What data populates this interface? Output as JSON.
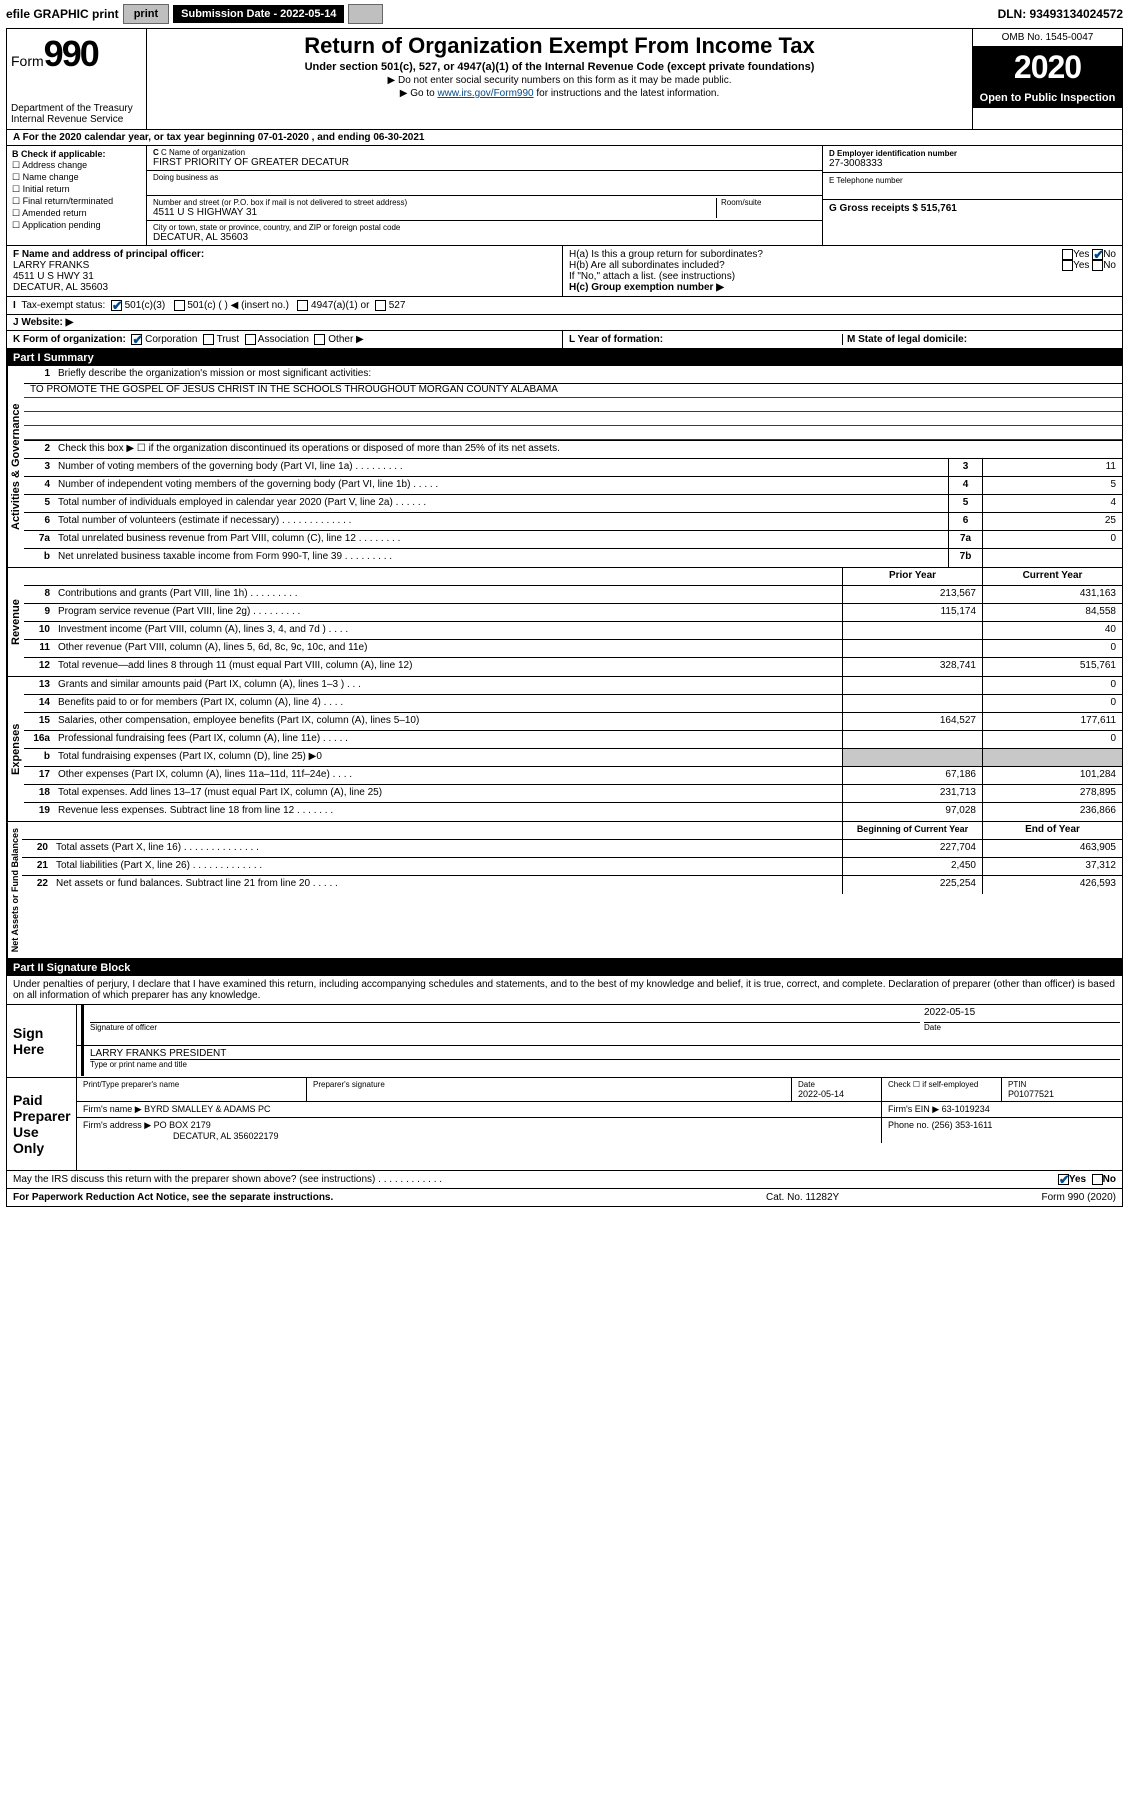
{
  "topbar": {
    "efile": "efile GRAPHIC print",
    "submission_label": "Submission Date - 2022-05-14",
    "dln": "DLN: 93493134024572"
  },
  "header": {
    "form_prefix": "Form",
    "form_number": "990",
    "dept": "Department of the Treasury\nInternal Revenue Service",
    "title": "Return of Organization Exempt From Income Tax",
    "sub": "Under section 501(c), 527, or 4947(a)(1) of the Internal Revenue Code (except private foundations)",
    "note1": "▶ Do not enter social security numbers on this form as it may be made public.",
    "note2_pre": "▶ Go to ",
    "note2_link": "www.irs.gov/Form990",
    "note2_post": " for instructions and the latest information.",
    "omb": "OMB No. 1545-0047",
    "year": "2020",
    "inspect": "Open to Public Inspection"
  },
  "row_a": "A For the 2020 calendar year, or tax year beginning 07-01-2020   , and ending 06-30-2021",
  "section_b": {
    "label": "B Check if applicable:",
    "checks": [
      "Address change",
      "Name change",
      "Initial return",
      "Final return/terminated",
      "Amended return",
      "Application pending"
    ],
    "c_label": "C Name of organization",
    "c_name": "FIRST PRIORITY OF GREATER DECATUR",
    "dba_label": "Doing business as",
    "addr_label": "Number and street (or P.O. box if mail is not delivered to street address)",
    "room_label": "Room/suite",
    "addr": "4511 U S HIGHWAY 31",
    "city_label": "City or town, state or province, country, and ZIP or foreign postal code",
    "city": "DECATUR, AL  35603",
    "d_label": "D Employer identification number",
    "d_ein": "27-3008333",
    "e_label": "E Telephone number",
    "g_label": "G Gross receipts $ 515,761"
  },
  "section_fh": {
    "f_label": "F  Name and address of principal officer:",
    "f_name": "LARRY FRANKS",
    "f_addr1": "4511 U S HWY 31",
    "f_addr2": "DECATUR, AL  35603",
    "ha_label": "H(a)  Is this a group return for subordinates?",
    "hb_label": "H(b)  Are all subordinates included?",
    "hb_note": "If \"No,\" attach a list. (see instructions)",
    "hc_label": "H(c)  Group exemption number ▶",
    "yes": "Yes",
    "no": "No"
  },
  "tax_status": {
    "label": "Tax-exempt status:",
    "opt1": "501(c)(3)",
    "opt2": "501(c) (   ) ◀ (insert no.)",
    "opt3": "4947(a)(1) or",
    "opt4": "527"
  },
  "website_label": "J   Website: ▶",
  "row_k": {
    "k": "K Form of organization:",
    "opts": [
      "Corporation",
      "Trust",
      "Association",
      "Other ▶"
    ],
    "l": "L Year of formation:",
    "m": "M State of legal domicile:"
  },
  "part1": {
    "title": "Part I     Summary",
    "side1": "Activities & Governance",
    "side2": "Revenue",
    "side3": "Expenses",
    "side4": "Net Assets or Fund Balances",
    "l1": "Briefly describe the organization's mission or most significant activities:",
    "mission": "TO PROMOTE THE GOSPEL OF JESUS CHRIST IN THE SCHOOLS THROUGHOUT MORGAN COUNTY ALABAMA",
    "l2": "Check this box ▶ ☐  if the organization discontinued its operations or disposed of more than 25% of its net assets.",
    "lines_gov": [
      {
        "n": "3",
        "d": "Number of voting members of the governing body (Part VI, line 1a)  .    .    .    .    .    .    .    .    .",
        "b": "3",
        "v": "11"
      },
      {
        "n": "4",
        "d": "Number of independent voting members of the governing body (Part VI, line 1b)   .    .    .    .    .",
        "b": "4",
        "v": "5"
      },
      {
        "n": "5",
        "d": "Total number of individuals employed in calendar year 2020 (Part V, line 2a)   .    .    .    .    .    .",
        "b": "5",
        "v": "4"
      },
      {
        "n": "6",
        "d": "Total number of volunteers (estimate if necessary)   .    .    .    .    .    .    .    .    .    .    .    .    .",
        "b": "6",
        "v": "25"
      },
      {
        "n": "7a",
        "d": "Total unrelated business revenue from Part VIII, column (C), line 12   .    .    .    .    .    .    .    .",
        "b": "7a",
        "v": "0"
      },
      {
        "n": "b",
        "d": "Net unrelated business taxable income from Form 990-T, line 39   .    .    .    .    .    .    .    .    .",
        "b": "7b",
        "v": ""
      }
    ],
    "prior_year": "Prior Year",
    "current_year": "Current Year",
    "lines_rev": [
      {
        "n": "8",
        "d": "Contributions and grants (Part VIII, line 1h)   .    .    .    .    .    .    .    .    .",
        "p": "213,567",
        "c": "431,163"
      },
      {
        "n": "9",
        "d": "Program service revenue (Part VIII, line 2g)    .    .    .    .    .    .    .    .    .",
        "p": "115,174",
        "c": "84,558"
      },
      {
        "n": "10",
        "d": "Investment income (Part VIII, column (A), lines 3, 4, and 7d )   .    .    .    .",
        "p": "",
        "c": "40"
      },
      {
        "n": "11",
        "d": "Other revenue (Part VIII, column (A), lines 5, 6d, 8c, 9c, 10c, and 11e)",
        "p": "",
        "c": "0"
      },
      {
        "n": "12",
        "d": "Total revenue—add lines 8 through 11 (must equal Part VIII, column (A), line 12)",
        "p": "328,741",
        "c": "515,761"
      }
    ],
    "lines_exp": [
      {
        "n": "13",
        "d": "Grants and similar amounts paid (Part IX, column (A), lines 1–3 )   .    .    .",
        "p": "",
        "c": "0"
      },
      {
        "n": "14",
        "d": "Benefits paid to or for members (Part IX, column (A), line 4)   .    .    .    .",
        "p": "",
        "c": "0"
      },
      {
        "n": "15",
        "d": "Salaries, other compensation, employee benefits (Part IX, column (A), lines 5–10)",
        "p": "164,527",
        "c": "177,611"
      },
      {
        "n": "16a",
        "d": "Professional fundraising fees (Part IX, column (A), line 11e)   .    .    .    .    .",
        "p": "",
        "c": "0"
      },
      {
        "n": "b",
        "d": "Total fundraising expenses (Part IX, column (D), line 25) ▶0",
        "p": "shade",
        "c": "shade"
      },
      {
        "n": "17",
        "d": "Other expenses (Part IX, column (A), lines 11a–11d, 11f–24e)   .    .    .    .",
        "p": "67,186",
        "c": "101,284"
      },
      {
        "n": "18",
        "d": "Total expenses. Add lines 13–17 (must equal Part IX, column (A), line 25)",
        "p": "231,713",
        "c": "278,895"
      },
      {
        "n": "19",
        "d": "Revenue less expenses. Subtract line 18 from line 12   .    .    .    .    .    .    .",
        "p": "97,028",
        "c": "236,866"
      }
    ],
    "beg_year": "Beginning of Current Year",
    "end_year": "End of Year",
    "lines_net": [
      {
        "n": "20",
        "d": "Total assets (Part X, line 16)   .    .    .    .    .    .    .    .    .    .    .    .    .    .",
        "p": "227,704",
        "c": "463,905"
      },
      {
        "n": "21",
        "d": "Total liabilities (Part X, line 26)   .    .    .    .    .    .    .    .    .    .    .    .    .",
        "p": "2,450",
        "c": "37,312"
      },
      {
        "n": "22",
        "d": "Net assets or fund balances. Subtract line 21 from line 20   .    .    .    .    .",
        "p": "225,254",
        "c": "426,593"
      }
    ]
  },
  "part2": {
    "title": "Part II     Signature Block",
    "penalty": "Under penalties of perjury, I declare that I have examined this return, including accompanying schedules and statements, and to the best of my knowledge and belief, it is true, correct, and complete. Declaration of preparer (other than officer) is based on all information of which preparer has any knowledge.",
    "sign_here": "Sign Here",
    "sig_officer": "Signature of officer",
    "sig_date": "2022-05-15",
    "date_lbl": "Date",
    "officer_name": "LARRY FRANKS  PRESIDENT",
    "type_name": "Type or print name and title",
    "paid": "Paid Preparer Use Only",
    "prep_name_lbl": "Print/Type preparer's name",
    "prep_sig_lbl": "Preparer's signature",
    "prep_date_lbl": "Date",
    "prep_date": "2022-05-14",
    "check_self": "Check ☐ if self-employed",
    "ptin_lbl": "PTIN",
    "ptin": "P01077521",
    "firm_name_lbl": "Firm's name    ▶",
    "firm_name": "BYRD SMALLEY & ADAMS PC",
    "firm_ein_lbl": "Firm's EIN ▶",
    "firm_ein": "63-1019234",
    "firm_addr_lbl": "Firm's address ▶",
    "firm_addr1": "PO BOX 2179",
    "firm_addr2": "DECATUR, AL  356022179",
    "phone_lbl": "Phone no.",
    "phone": "(256) 353-1611",
    "discuss": "May the IRS discuss this return with the preparer shown above? (see instructions)   .    .    .    .    .    .    .    .    .    .    .    ."
  },
  "footer": {
    "left": "For Paperwork Reduction Act Notice, see the separate instructions.",
    "mid": "Cat. No. 11282Y",
    "right": "Form 990 (2020)"
  }
}
